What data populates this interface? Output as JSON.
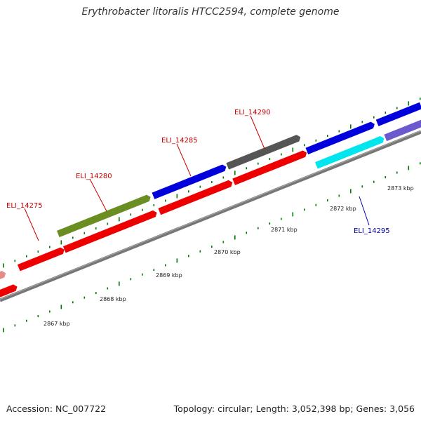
{
  "title": "Erythrobacter litoralis HTCC2594, complete genome",
  "footer": {
    "accession": "Accession: NC_007722",
    "stats": "Topology: circular; Length: 3,052,398 bp; Genes: 3,056"
  },
  "scale_labels": [
    "2867 kbp",
    "2868 kbp",
    "2869 kbp",
    "2870 kbp",
    "2871 kbp",
    "2872 kbp",
    "2873 kbp"
  ],
  "gene_labels": [
    {
      "text": "ELI_14275",
      "color": "#cc0000"
    },
    {
      "text": "ELI_14280",
      "color": "#cc0000"
    },
    {
      "text": "ELI_14285",
      "color": "#cc0000"
    },
    {
      "text": "ELI_14290",
      "color": "#cc0000"
    },
    {
      "text": "ELI_14295",
      "color": "#0000aa"
    }
  ],
  "colors": {
    "cds_red": "#ee0000",
    "gene_olive": "#6b8e23",
    "gene_blue": "#0000dd",
    "gene_gray": "#555555",
    "gene_cyan": "#00e5ee",
    "gene_slate": "#6a5acd",
    "gene_pink": "#e58a8a",
    "backbone": "#777777",
    "ticks": "#007700"
  }
}
